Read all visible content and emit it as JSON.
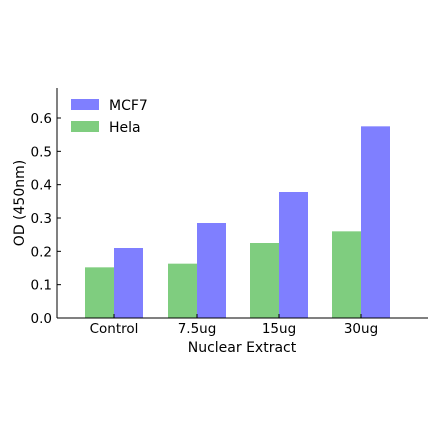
{
  "chart_data": {
    "type": "bar",
    "categories": [
      "Control",
      "7.5ug",
      "15ug",
      "30ug"
    ],
    "series": [
      {
        "name": "Hela",
        "color": "#7fcd7f",
        "values": [
          0.152,
          0.163,
          0.225,
          0.26
        ]
      },
      {
        "name": "MCF7",
        "color": "#7f7fff",
        "values": [
          0.21,
          0.285,
          0.378,
          0.575
        ]
      }
    ],
    "title": "",
    "xlabel": "Nuclear Extract",
    "ylabel": "OD (450nm)",
    "ylim": [
      0,
      0.69
    ],
    "yticks": [
      "0.0",
      "0.1",
      "0.2",
      "0.3",
      "0.4",
      "0.5",
      "0.6"
    ],
    "legend": {
      "placement": "top-left",
      "order": [
        "MCF7",
        "Hela"
      ]
    },
    "grid": false
  }
}
